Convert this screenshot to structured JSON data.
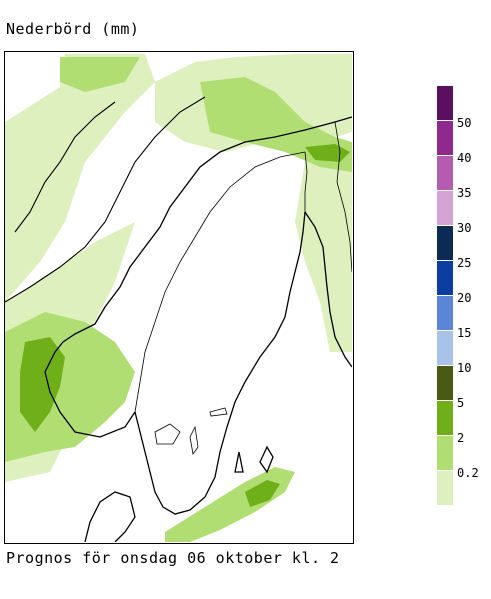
{
  "title": "Nederbörd (mm)",
  "footer": "Prognos för onsdag 06 oktober kl. 2",
  "legend": {
    "unit": "mm",
    "classes": [
      {
        "color": "#5a1060"
      },
      {
        "color": "#8e2a8e",
        "label": "50"
      },
      {
        "color": "#b45cb0",
        "label": "40"
      },
      {
        "color": "#d6a3d6",
        "label": "35"
      },
      {
        "color": "#0d2a55",
        "label": "30"
      },
      {
        "color": "#0b3ea0",
        "label": "25"
      },
      {
        "color": "#5b86d6",
        "label": "20"
      },
      {
        "color": "#a9c3e8",
        "label": "15"
      },
      {
        "color": "#4a5a12",
        "label": "10"
      },
      {
        "color": "#6fb01a",
        "label": "5"
      },
      {
        "color": "#b1de73",
        "label": "2"
      },
      {
        "color": "#ddf0bd",
        "label": "0.2"
      }
    ]
  },
  "map": {
    "region": "Scandinavia",
    "colors": {
      "light": "#ddf0bd",
      "mid": "#b1de73",
      "strong": "#6fb01a",
      "coast": "#000000",
      "border": "#000000"
    }
  }
}
